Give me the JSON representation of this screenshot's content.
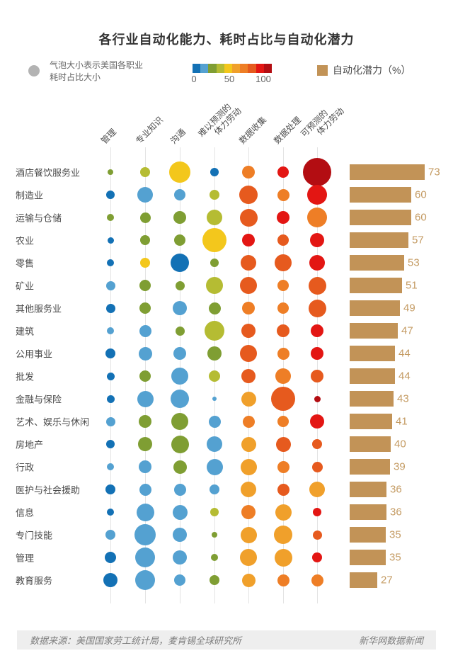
{
  "title": "各行业自动化能力、耗时占比与自动化潜力",
  "legend": {
    "bubble_label_lines": [
      "气泡大小表示美国各职业",
      "耗时占比大小"
    ],
    "colorbar": {
      "min": 0,
      "max": 100,
      "ticks": [
        "0",
        "50",
        "100"
      ]
    },
    "bar_legend_label": "自动化潜力（%）"
  },
  "footer": {
    "source": "数据来源：美国国家劳工统计局，麦肯锡全球研究所",
    "credit": "新华网数据新闻"
  },
  "colors": {
    "palette": [
      "#1371b5",
      "#54a1d1",
      "#7f9e33",
      "#b5bc33",
      "#f3c71c",
      "#f0a02b",
      "#ee7e26",
      "#e65a1e",
      "#e31613",
      "#b30d12"
    ],
    "bar": "#c29357",
    "bar_label": "#c49b63",
    "legend_bubble": "#b3b3b3"
  },
  "chart_data": {
    "type": "bubble-matrix+bar",
    "note": "bubble size = 耗时占比 (r in px as drawn); bubble color = 自动化能力 value v on 0-100 scale; bar = 自动化潜力 %",
    "columns": [
      "管理",
      "专业知识",
      "沟通",
      "难以预测的体力劳动",
      "数据收集",
      "数据处理",
      "可预测的体力劳动"
    ],
    "column_header_lines": [
      [
        "管理"
      ],
      [
        "专业知识"
      ],
      [
        "沟通"
      ],
      [
        "难以预测的",
        "体力劳动"
      ],
      [
        "数据收集"
      ],
      [
        "数据处理"
      ],
      [
        "可预测的",
        "体力劳动"
      ]
    ],
    "bar_metric": "自动化潜力（%）",
    "color_axis_range": [
      0,
      100
    ],
    "rows": [
      {
        "industry": "酒店餐饮服务业",
        "potential": 73,
        "cells": [
          {
            "r": 4,
            "v": 25
          },
          {
            "r": 7,
            "v": 35
          },
          {
            "r": 15,
            "v": 45
          },
          {
            "r": 6,
            "v": 5
          },
          {
            "r": 9,
            "v": 65
          },
          {
            "r": 8,
            "v": 85
          },
          {
            "r": 20,
            "v": 95
          }
        ]
      },
      {
        "industry": "制造业",
        "potential": 60,
        "cells": [
          {
            "r": 6,
            "v": 5
          },
          {
            "r": 11,
            "v": 15
          },
          {
            "r": 8,
            "v": 15
          },
          {
            "r": 7,
            "v": 35
          },
          {
            "r": 13,
            "v": 75
          },
          {
            "r": 8.5,
            "v": 65
          },
          {
            "r": 14,
            "v": 85
          }
        ]
      },
      {
        "industry": "运输与仓储",
        "potential": 60,
        "cells": [
          {
            "r": 5,
            "v": 25
          },
          {
            "r": 7.5,
            "v": 25
          },
          {
            "r": 9,
            "v": 25
          },
          {
            "r": 11,
            "v": 35
          },
          {
            "r": 12.5,
            "v": 75
          },
          {
            "r": 9,
            "v": 85
          },
          {
            "r": 14,
            "v": 65
          }
        ]
      },
      {
        "industry": "农业",
        "potential": 57,
        "cells": [
          {
            "r": 4.5,
            "v": 5
          },
          {
            "r": 7,
            "v": 25
          },
          {
            "r": 8,
            "v": 25
          },
          {
            "r": 17,
            "v": 45
          },
          {
            "r": 9,
            "v": 85
          },
          {
            "r": 8,
            "v": 75
          },
          {
            "r": 10,
            "v": 85
          }
        ]
      },
      {
        "industry": "零售",
        "potential": 53,
        "cells": [
          {
            "r": 5,
            "v": 5
          },
          {
            "r": 7,
            "v": 45
          },
          {
            "r": 13,
            "v": 5
          },
          {
            "r": 6,
            "v": 25
          },
          {
            "r": 11,
            "v": 75
          },
          {
            "r": 12,
            "v": 75
          },
          {
            "r": 11,
            "v": 85
          }
        ]
      },
      {
        "industry": "矿业",
        "potential": 51,
        "cells": [
          {
            "r": 6.5,
            "v": 15
          },
          {
            "r": 8,
            "v": 25
          },
          {
            "r": 6.5,
            "v": 25
          },
          {
            "r": 12,
            "v": 35
          },
          {
            "r": 12,
            "v": 75
          },
          {
            "r": 8,
            "v": 65
          },
          {
            "r": 12.5,
            "v": 75
          }
        ]
      },
      {
        "industry": "其他服务业",
        "potential": 49,
        "cells": [
          {
            "r": 6.5,
            "v": 5
          },
          {
            "r": 8,
            "v": 25
          },
          {
            "r": 10,
            "v": 15
          },
          {
            "r": 8.5,
            "v": 25
          },
          {
            "r": 9,
            "v": 65
          },
          {
            "r": 8,
            "v": 65
          },
          {
            "r": 12.5,
            "v": 75
          }
        ]
      },
      {
        "industry": "建筑",
        "potential": 47,
        "cells": [
          {
            "r": 5,
            "v": 15
          },
          {
            "r": 8.5,
            "v": 15
          },
          {
            "r": 6.5,
            "v": 25
          },
          {
            "r": 14,
            "v": 35
          },
          {
            "r": 10,
            "v": 75
          },
          {
            "r": 9,
            "v": 75
          },
          {
            "r": 9,
            "v": 85
          }
        ]
      },
      {
        "industry": "公用事业",
        "potential": 44,
        "cells": [
          {
            "r": 7,
            "v": 5
          },
          {
            "r": 9.5,
            "v": 15
          },
          {
            "r": 9,
            "v": 15
          },
          {
            "r": 10,
            "v": 25
          },
          {
            "r": 12,
            "v": 75
          },
          {
            "r": 8.5,
            "v": 65
          },
          {
            "r": 9,
            "v": 85
          }
        ]
      },
      {
        "industry": "批发",
        "potential": 44,
        "cells": [
          {
            "r": 5.5,
            "v": 5
          },
          {
            "r": 8,
            "v": 25
          },
          {
            "r": 12,
            "v": 15
          },
          {
            "r": 8,
            "v": 35
          },
          {
            "r": 10,
            "v": 75
          },
          {
            "r": 11,
            "v": 65
          },
          {
            "r": 9,
            "v": 75
          }
        ]
      },
      {
        "industry": "金融与保险",
        "potential": 43,
        "cells": [
          {
            "r": 5.5,
            "v": 5
          },
          {
            "r": 11.5,
            "v": 15
          },
          {
            "r": 13,
            "v": 15
          },
          {
            "r": 3,
            "v": 15
          },
          {
            "r": 10.5,
            "v": 55
          },
          {
            "r": 17,
            "v": 75
          },
          {
            "r": 4.5,
            "v": 95
          }
        ]
      },
      {
        "industry": "艺术、娱乐与休闲",
        "potential": 41,
        "cells": [
          {
            "r": 6.5,
            "v": 15
          },
          {
            "r": 9,
            "v": 25
          },
          {
            "r": 12,
            "v": 25
          },
          {
            "r": 8.5,
            "v": 15
          },
          {
            "r": 8.5,
            "v": 65
          },
          {
            "r": 8,
            "v": 65
          },
          {
            "r": 10,
            "v": 85
          }
        ]
      },
      {
        "industry": "房地产",
        "potential": 40,
        "cells": [
          {
            "r": 6,
            "v": 5
          },
          {
            "r": 10,
            "v": 25
          },
          {
            "r": 12.5,
            "v": 25
          },
          {
            "r": 11,
            "v": 15
          },
          {
            "r": 10.5,
            "v": 55
          },
          {
            "r": 10.5,
            "v": 75
          },
          {
            "r": 7,
            "v": 75
          }
        ]
      },
      {
        "industry": "行政",
        "potential": 39,
        "cells": [
          {
            "r": 5,
            "v": 15
          },
          {
            "r": 9,
            "v": 15
          },
          {
            "r": 9.5,
            "v": 25
          },
          {
            "r": 11.5,
            "v": 15
          },
          {
            "r": 11.5,
            "v": 55
          },
          {
            "r": 8.5,
            "v": 65
          },
          {
            "r": 7.5,
            "v": 75
          }
        ]
      },
      {
        "industry": "医护与社会援助",
        "potential": 36,
        "cells": [
          {
            "r": 7,
            "v": 5
          },
          {
            "r": 8.5,
            "v": 15
          },
          {
            "r": 8.5,
            "v": 15
          },
          {
            "r": 7,
            "v": 15
          },
          {
            "r": 11,
            "v": 55
          },
          {
            "r": 8.5,
            "v": 75
          },
          {
            "r": 11,
            "v": 55
          }
        ]
      },
      {
        "industry": "信息",
        "potential": 36,
        "cells": [
          {
            "r": 5,
            "v": 5
          },
          {
            "r": 12.5,
            "v": 15
          },
          {
            "r": 10.5,
            "v": 15
          },
          {
            "r": 6,
            "v": 35
          },
          {
            "r": 10,
            "v": 65
          },
          {
            "r": 11.5,
            "v": 55
          },
          {
            "r": 6,
            "v": 85
          }
        ]
      },
      {
        "industry": "专门技能",
        "potential": 35,
        "cells": [
          {
            "r": 7,
            "v": 15
          },
          {
            "r": 15,
            "v": 15
          },
          {
            "r": 10,
            "v": 15
          },
          {
            "r": 4,
            "v": 25
          },
          {
            "r": 11.5,
            "v": 55
          },
          {
            "r": 13,
            "v": 55
          },
          {
            "r": 6.5,
            "v": 75
          }
        ]
      },
      {
        "industry": "管理",
        "potential": 35,
        "cells": [
          {
            "r": 8,
            "v": 5
          },
          {
            "r": 14,
            "v": 15
          },
          {
            "r": 10,
            "v": 15
          },
          {
            "r": 5,
            "v": 25
          },
          {
            "r": 12,
            "v": 55
          },
          {
            "r": 12.5,
            "v": 55
          },
          {
            "r": 7,
            "v": 85
          }
        ]
      },
      {
        "industry": "教育服务",
        "potential": 27,
        "cells": [
          {
            "r": 10,
            "v": 5
          },
          {
            "r": 14,
            "v": 15
          },
          {
            "r": 8,
            "v": 15
          },
          {
            "r": 7,
            "v": 25
          },
          {
            "r": 9.5,
            "v": 55
          },
          {
            "r": 8.5,
            "v": 65
          },
          {
            "r": 8.5,
            "v": 65
          }
        ]
      }
    ]
  }
}
